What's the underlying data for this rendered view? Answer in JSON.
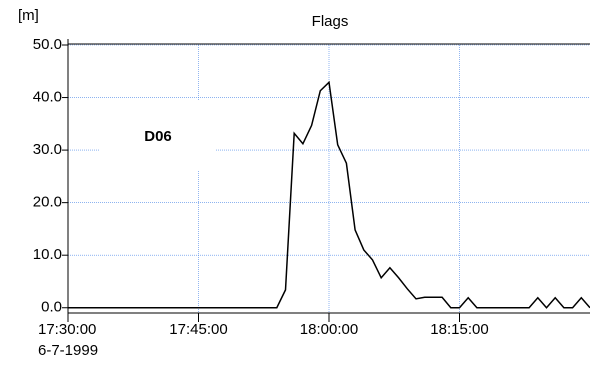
{
  "chart_data": {
    "type": "line",
    "title": "Flags",
    "y_unit": "[m]",
    "annotation": "D06",
    "date_label": "6-7-1999",
    "x": [
      "17:30:00",
      "17:31:00",
      "17:32:00",
      "17:33:00",
      "17:34:00",
      "17:35:00",
      "17:36:00",
      "17:37:00",
      "17:38:00",
      "17:39:00",
      "17:40:00",
      "17:41:00",
      "17:42:00",
      "17:43:00",
      "17:44:00",
      "17:45:00",
      "17:46:00",
      "17:47:00",
      "17:48:00",
      "17:49:00",
      "17:50:00",
      "17:51:00",
      "17:52:00",
      "17:53:00",
      "17:54:00",
      "17:55:00",
      "17:56:00",
      "17:57:00",
      "17:58:00",
      "17:59:00",
      "18:00:00",
      "18:01:00",
      "18:02:00",
      "18:03:00",
      "18:04:00",
      "18:05:00",
      "18:06:00",
      "18:07:00",
      "18:08:00",
      "18:09:00",
      "18:10:00",
      "18:11:00",
      "18:12:00",
      "18:13:00",
      "18:14:00",
      "18:15:00",
      "18:16:00",
      "18:17:00",
      "18:18:00",
      "18:19:00",
      "18:20:00",
      "18:21:00",
      "18:22:00",
      "18:23:00",
      "18:24:00",
      "18:25:00",
      "18:26:00",
      "18:27:00",
      "18:28:00",
      "18:29:00",
      "18:30:00"
    ],
    "series": [
      {
        "name": "Flags",
        "color": "#000000",
        "values": [
          0,
          0,
          0,
          0,
          0,
          0,
          0,
          0,
          0,
          0,
          0,
          0,
          0,
          0,
          0,
          0,
          0,
          0,
          0,
          0,
          0,
          0,
          0,
          0,
          0,
          3.4,
          33.2,
          31.2,
          34.7,
          41.3,
          42.9,
          31.0,
          27.5,
          14.8,
          11.0,
          9.1,
          5.7,
          7.6,
          5.7,
          3.6,
          1.7,
          2.0,
          2.0,
          2.0,
          0,
          0,
          1.9,
          0,
          0,
          0,
          0,
          0,
          0,
          0,
          1.9,
          0,
          1.9,
          0,
          0,
          1.9,
          0
        ]
      }
    ],
    "xlim": [
      "17:30:00",
      "18:30:00"
    ],
    "xticks": [
      "17:30:00",
      "17:45:00",
      "18:00:00",
      "18:15:00"
    ],
    "ylim": [
      -1,
      50
    ],
    "yticks": [
      {
        "value": 0,
        "label": "0.0"
      },
      {
        "value": 10,
        "label": "10.0"
      },
      {
        "value": 20,
        "label": "20.0"
      },
      {
        "value": 30,
        "label": "30.0"
      },
      {
        "value": 40,
        "label": "40.0"
      },
      {
        "value": 50,
        "label": "50.0"
      }
    ],
    "grid": true,
    "grid_color": "#4a86e8"
  }
}
